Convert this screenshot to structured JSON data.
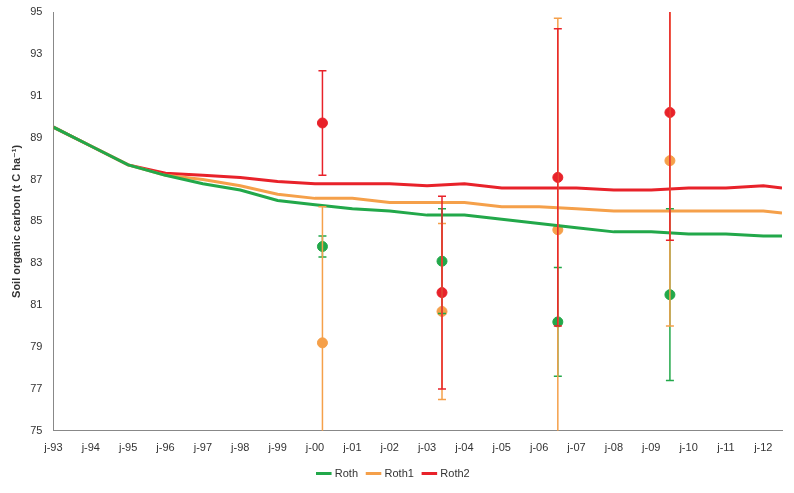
{
  "chart_data": {
    "type": "line",
    "y_label": "Soil organic carbon (t C ha⁻¹)",
    "x": [
      1993,
      1994,
      1995,
      1996,
      1997,
      1998,
      1999,
      2000,
      2001,
      2002,
      2003,
      2004,
      2005,
      2006,
      2007,
      2008,
      2009,
      2010,
      2011,
      2012,
      2012.5
    ],
    "xlim": [
      1993,
      2012.5
    ],
    "xticks": [
      {
        "value": 1993,
        "label": "j-93"
      },
      {
        "value": 1994,
        "label": "j-94"
      },
      {
        "value": 1995,
        "label": "j-95"
      },
      {
        "value": 1996,
        "label": "j-96"
      },
      {
        "value": 1997,
        "label": "j-97"
      },
      {
        "value": 1998,
        "label": "j-98"
      },
      {
        "value": 1999,
        "label": "j-99"
      },
      {
        "value": 2000,
        "label": "j-00"
      },
      {
        "value": 2001,
        "label": "j-01"
      },
      {
        "value": 2002,
        "label": "j-02"
      },
      {
        "value": 2003,
        "label": "j-03"
      },
      {
        "value": 2004,
        "label": "j-04"
      },
      {
        "value": 2005,
        "label": "j-05"
      },
      {
        "value": 2006,
        "label": "j-06"
      },
      {
        "value": 2007,
        "label": "j-07"
      },
      {
        "value": 2008,
        "label": "j-08"
      },
      {
        "value": 2009,
        "label": "j-09"
      },
      {
        "value": 2010,
        "label": "j-10"
      },
      {
        "value": 2011,
        "label": "j-11"
      },
      {
        "value": 2012,
        "label": "j-12"
      }
    ],
    "ylim": [
      75,
      95
    ],
    "yticks": [
      75,
      77,
      79,
      81,
      83,
      85,
      87,
      89,
      91,
      93,
      95
    ],
    "grid": false,
    "legend": "bottom",
    "series": [
      {
        "name": "Roth",
        "color": "#22a84a",
        "values": [
          89.5,
          88.6,
          87.7,
          87.2,
          86.8,
          86.5,
          86.0,
          85.8,
          85.6,
          85.5,
          85.3,
          85.3,
          85.1,
          84.9,
          84.7,
          84.5,
          84.5,
          84.4,
          84.4,
          84.3,
          84.3
        ],
        "observed": {
          "x": [
            2000.2,
            2003.4,
            2006.5,
            2009.5
          ],
          "values": [
            83.8,
            83.1,
            80.2,
            81.5
          ],
          "error": [
            0.5,
            2.5,
            2.6,
            4.1
          ]
        }
      },
      {
        "name": "Roth1",
        "color": "#f5a04a",
        "values": [
          89.5,
          88.6,
          87.7,
          87.2,
          87.0,
          86.7,
          86.3,
          86.1,
          86.1,
          85.9,
          85.9,
          85.9,
          85.7,
          85.7,
          85.6,
          85.5,
          85.5,
          85.5,
          85.5,
          85.5,
          85.4
        ],
        "observed": {
          "x": [
            2000.2,
            2003.4,
            2006.5,
            2009.5
          ],
          "values": [
            79.2,
            80.7,
            84.6,
            87.9
          ],
          "error": [
            6.5,
            4.2,
            10.1,
            7.9
          ]
        }
      },
      {
        "name": "Roth2",
        "color": "#e8222a",
        "values": [
          89.5,
          88.6,
          87.7,
          87.3,
          87.2,
          87.1,
          86.9,
          86.8,
          86.8,
          86.8,
          86.7,
          86.8,
          86.6,
          86.6,
          86.6,
          86.5,
          86.5,
          86.6,
          86.6,
          86.7,
          86.6
        ],
        "observed": {
          "x": [
            2000.2,
            2003.4,
            2006.5,
            2009.5
          ],
          "values": [
            89.7,
            81.6,
            87.1,
            90.2
          ],
          "error": [
            2.5,
            4.6,
            7.1,
            6.1
          ]
        }
      }
    ]
  }
}
